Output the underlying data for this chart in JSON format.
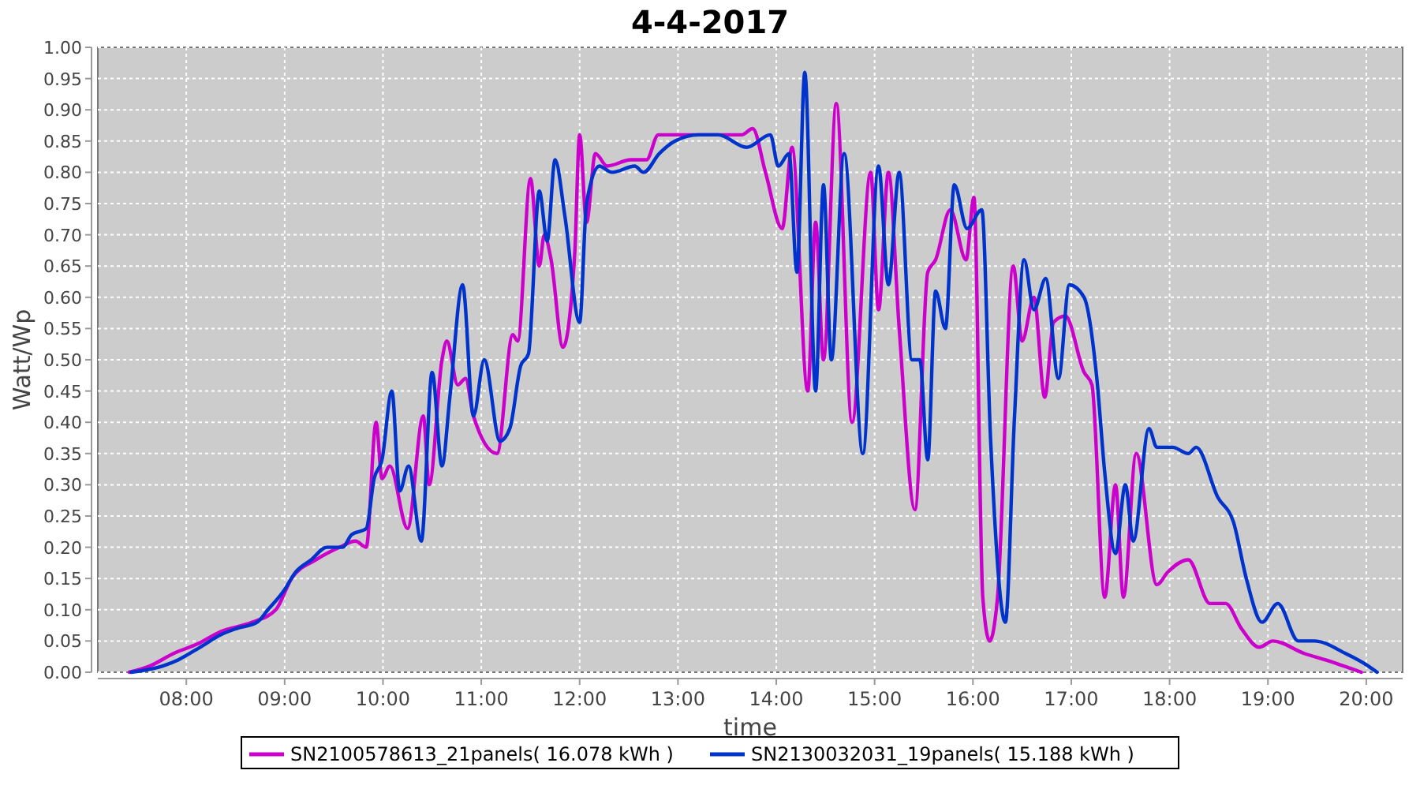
{
  "chart_data": {
    "type": "line",
    "title": "4-4-2017",
    "xlabel": "time",
    "ylabel": "Watt/Wp",
    "xlim": [
      7.1,
      20.37
    ],
    "xticks": [
      {
        "value": 8,
        "label": "08:00"
      },
      {
        "value": 9,
        "label": "09:00"
      },
      {
        "value": 10,
        "label": "10:00"
      },
      {
        "value": 11,
        "label": "11:00"
      },
      {
        "value": 12,
        "label": "12:00"
      },
      {
        "value": 13,
        "label": "13:00"
      },
      {
        "value": 14,
        "label": "14:00"
      },
      {
        "value": 15,
        "label": "15:00"
      },
      {
        "value": 16,
        "label": "16:00"
      },
      {
        "value": 17,
        "label": "17:00"
      },
      {
        "value": 18,
        "label": "18:00"
      },
      {
        "value": 19,
        "label": "19:00"
      },
      {
        "value": 20,
        "label": "20:00"
      }
    ],
    "ylim": [
      0,
      1
    ],
    "yticks": [
      {
        "value": 0,
        "label": "0.00"
      },
      {
        "value": 0.05,
        "label": "0.05"
      },
      {
        "value": 0.1,
        "label": "0.10"
      },
      {
        "value": 0.15,
        "label": "0.15"
      },
      {
        "value": 0.2,
        "label": "0.20"
      },
      {
        "value": 0.25,
        "label": "0.25"
      },
      {
        "value": 0.3,
        "label": "0.30"
      },
      {
        "value": 0.35,
        "label": "0.35"
      },
      {
        "value": 0.4,
        "label": "0.40"
      },
      {
        "value": 0.45,
        "label": "0.45"
      },
      {
        "value": 0.5,
        "label": "0.50"
      },
      {
        "value": 0.55,
        "label": "0.55"
      },
      {
        "value": 0.6,
        "label": "0.60"
      },
      {
        "value": 0.65,
        "label": "0.65"
      },
      {
        "value": 0.7,
        "label": "0.70"
      },
      {
        "value": 0.75,
        "label": "0.75"
      },
      {
        "value": 0.8,
        "label": "0.80"
      },
      {
        "value": 0.85,
        "label": "0.85"
      },
      {
        "value": 0.9,
        "label": "0.90"
      },
      {
        "value": 0.95,
        "label": "0.95"
      },
      {
        "value": 1,
        "label": "1.00"
      }
    ],
    "grid": true,
    "legend": "bottom",
    "marker": "none",
    "line_style": "solid",
    "series": [
      {
        "name": "SN2100578613_21panels( 16.078 kWh )",
        "color": "#cc00cc",
        "x": [
          7.42,
          7.63,
          7.87,
          8.11,
          8.35,
          8.67,
          8.91,
          9.07,
          9.32,
          9.56,
          9.72,
          9.83,
          9.93,
          9.99,
          10.07,
          10.25,
          10.41,
          10.47,
          10.6,
          10.65,
          10.76,
          10.84,
          10.92,
          11.16,
          11.32,
          11.37,
          11.5,
          11.59,
          11.64,
          11.71,
          11.83,
          11.95,
          12,
          12.07,
          12.16,
          12.28,
          12.52,
          12.68,
          12.8,
          13.01,
          13.65,
          13.76,
          13.89,
          14.06,
          14.16,
          14.32,
          14.4,
          14.48,
          14.61,
          14.77,
          14.96,
          15.04,
          15.14,
          15.25,
          15.41,
          15.54,
          15.62,
          15.77,
          15.93,
          16.01,
          16.1,
          16.17,
          16.25,
          16.41,
          16.5,
          16.62,
          16.73,
          16.82,
          16.94,
          17.13,
          17.21,
          17.34,
          17.45,
          17.53,
          17.66,
          17.87,
          17.98,
          18.19,
          18.41,
          18.57,
          18.73,
          18.91,
          19.05,
          19.37,
          19.58,
          19.95
        ],
        "values": [
          0,
          0.01,
          0.03,
          0.045,
          0.065,
          0.08,
          0.1,
          0.15,
          0.18,
          0.2,
          0.21,
          0.2,
          0.4,
          0.31,
          0.33,
          0.23,
          0.41,
          0.3,
          0.5,
          0.53,
          0.46,
          0.47,
          0.41,
          0.35,
          0.54,
          0.53,
          0.79,
          0.65,
          0.7,
          0.66,
          0.52,
          0.67,
          0.86,
          0.72,
          0.83,
          0.81,
          0.82,
          0.82,
          0.86,
          0.86,
          0.86,
          0.87,
          0.8,
          0.71,
          0.84,
          0.45,
          0.72,
          0.5,
          0.91,
          0.4,
          0.8,
          0.58,
          0.8,
          0.55,
          0.26,
          0.64,
          0.66,
          0.74,
          0.66,
          0.76,
          0.12,
          0.05,
          0.12,
          0.65,
          0.53,
          0.6,
          0.44,
          0.56,
          0.57,
          0.48,
          0.46,
          0.12,
          0.3,
          0.12,
          0.35,
          0.14,
          0.16,
          0.18,
          0.11,
          0.11,
          0.07,
          0.04,
          0.05,
          0.03,
          0.02,
          0
        ]
      },
      {
        "name": "SN2130032031_19panels( 15.188 kWh )",
        "color": "#0033cc",
        "x": [
          7.44,
          7.76,
          7.92,
          8.14,
          8.35,
          8.51,
          8.72,
          8.83,
          8.99,
          9.11,
          9.27,
          9.43,
          9.59,
          9.68,
          9.83,
          9.91,
          9.99,
          10.09,
          10.17,
          10.26,
          10.39,
          10.5,
          10.6,
          10.68,
          10.81,
          10.92,
          11.03,
          11.19,
          11.29,
          11.4,
          11.48,
          11.59,
          11.67,
          11.75,
          11.85,
          12,
          12.07,
          12.2,
          12.33,
          12.56,
          12.65,
          12.81,
          12.97,
          13.21,
          13.41,
          13.7,
          13.94,
          14.02,
          14.13,
          14.21,
          14.29,
          14.4,
          14.48,
          14.56,
          14.69,
          14.88,
          15.04,
          15.14,
          15.25,
          15.38,
          15.46,
          15.54,
          15.62,
          15.72,
          15.81,
          15.94,
          16.09,
          16.18,
          16.33,
          16.42,
          16.52,
          16.62,
          16.74,
          16.87,
          16.98,
          17.13,
          17.26,
          17.34,
          17.45,
          17.55,
          17.63,
          17.79,
          17.87,
          18.03,
          18.19,
          18.27,
          18.49,
          18.65,
          18.78,
          18.94,
          19.1,
          19.31,
          19.47,
          19.79,
          20.02,
          20.11
        ],
        "values": [
          0,
          0.01,
          0.02,
          0.04,
          0.06,
          0.07,
          0.08,
          0.1,
          0.13,
          0.16,
          0.18,
          0.2,
          0.2,
          0.22,
          0.23,
          0.31,
          0.34,
          0.45,
          0.29,
          0.33,
          0.21,
          0.48,
          0.33,
          0.44,
          0.62,
          0.41,
          0.5,
          0.37,
          0.39,
          0.49,
          0.51,
          0.77,
          0.69,
          0.82,
          0.73,
          0.56,
          0.75,
          0.81,
          0.8,
          0.81,
          0.8,
          0.83,
          0.85,
          0.86,
          0.86,
          0.84,
          0.86,
          0.81,
          0.83,
          0.64,
          0.96,
          0.45,
          0.78,
          0.5,
          0.83,
          0.35,
          0.81,
          0.62,
          0.8,
          0.5,
          0.5,
          0.34,
          0.61,
          0.55,
          0.78,
          0.71,
          0.74,
          0.37,
          0.08,
          0.4,
          0.66,
          0.58,
          0.63,
          0.47,
          0.62,
          0.6,
          0.47,
          0.32,
          0.19,
          0.3,
          0.21,
          0.39,
          0.36,
          0.36,
          0.35,
          0.36,
          0.28,
          0.24,
          0.15,
          0.08,
          0.11,
          0.05,
          0.05,
          0.03,
          0.01,
          0
        ]
      }
    ]
  }
}
